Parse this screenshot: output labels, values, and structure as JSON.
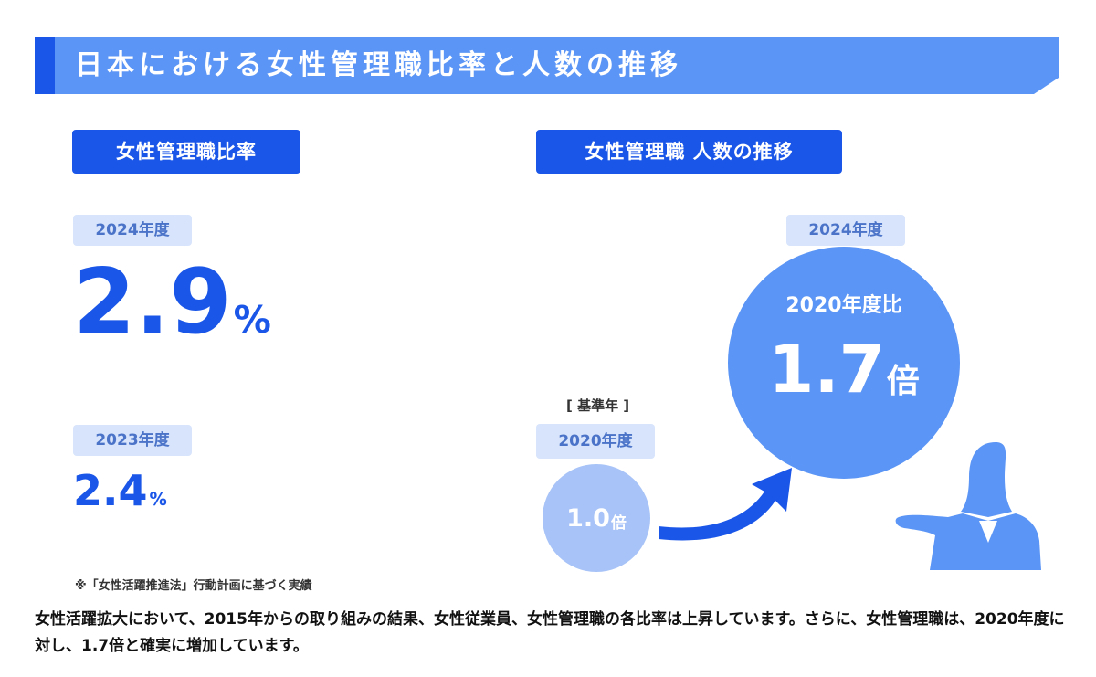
{
  "title": "日本における女性管理職比率と人数の推移",
  "ratio_section": {
    "heading": "女性管理職比率",
    "current": {
      "year_label": "2024年度",
      "value": "2.9",
      "unit": "%"
    },
    "previous": {
      "year_label": "2023年度",
      "value": "2.4",
      "unit": "%"
    }
  },
  "count_section": {
    "heading": "女性管理職 人数の推移",
    "base": {
      "basis_label": "[ 基準年 ]",
      "year_label": "2020年度",
      "value": "1.0",
      "unit": "倍"
    },
    "current": {
      "year_label": "2024年度",
      "comparison_label": "2020年度比",
      "value": "1.7",
      "unit": "倍"
    }
  },
  "footnote": "※「女性活躍推進法」行動計画に基づく実績",
  "description": "女性活躍拡大において、2015年からの取り組みの結果、女性従業員、女性管理職の各比率は上昇しています。さらに、女性管理職は、2020年度に対し、1.7倍と確実に増加しています。",
  "colors": {
    "primary": "#1a56e8",
    "light_blue": "#5b95f5",
    "pale_blue": "#a7c3f7",
    "tag_bg": "#d7e4fb"
  },
  "icons": [
    "arrow-curve-icon",
    "businesswoman-icon"
  ]
}
